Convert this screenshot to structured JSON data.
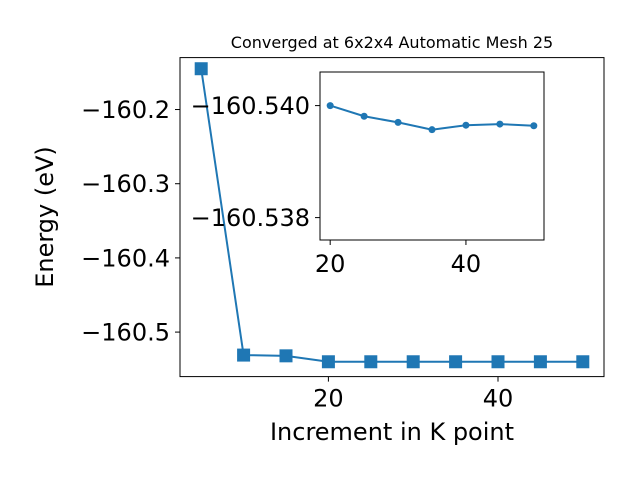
{
  "chart_data": [
    {
      "type": "line",
      "title": "Converged at 6x2x4 Automatic Mesh 25",
      "xlabel": "Increment in K point",
      "ylabel": "Energy (eV)",
      "xlim": [
        2.5,
        52.5
      ],
      "ylim": [
        -160.56,
        -160.13
      ],
      "x_ticks": [
        20,
        40
      ],
      "x_tick_labels": [
        "20",
        "40"
      ],
      "y_ticks": [
        -160.2,
        -160.3,
        -160.4,
        -160.5
      ],
      "y_tick_labels": [
        "−160.2",
        "−160.3",
        "−160.4",
        "−160.5"
      ],
      "grid": false,
      "marker": "square",
      "color": "#1f77b4",
      "x": [
        5,
        10,
        15,
        20,
        25,
        30,
        35,
        40,
        45,
        50
      ],
      "values": [
        -160.145,
        -160.531,
        -160.532,
        -160.54,
        -160.54,
        -160.54,
        -160.54,
        -160.54,
        -160.54,
        -160.54
      ]
    },
    {
      "type": "line",
      "title": "",
      "xlabel": "",
      "ylabel": "",
      "xlim": [
        18.5,
        51.5
      ],
      "ylim": [
        -160.5376,
        -160.5406
      ],
      "x_ticks": [
        20,
        40
      ],
      "x_tick_labels": [
        "20",
        "40"
      ],
      "y_ticks": [
        -160.54,
        -160.538
      ],
      "y_tick_labels": [
        "−160.540",
        "−160.538"
      ],
      "grid": false,
      "marker": "circle",
      "color": "#1f77b4",
      "x": [
        20,
        25,
        30,
        35,
        40,
        45,
        50
      ],
      "values": [
        -160.54,
        -160.53981,
        -160.5397,
        -160.53957,
        -160.53965,
        -160.53967,
        -160.53964
      ]
    }
  ]
}
